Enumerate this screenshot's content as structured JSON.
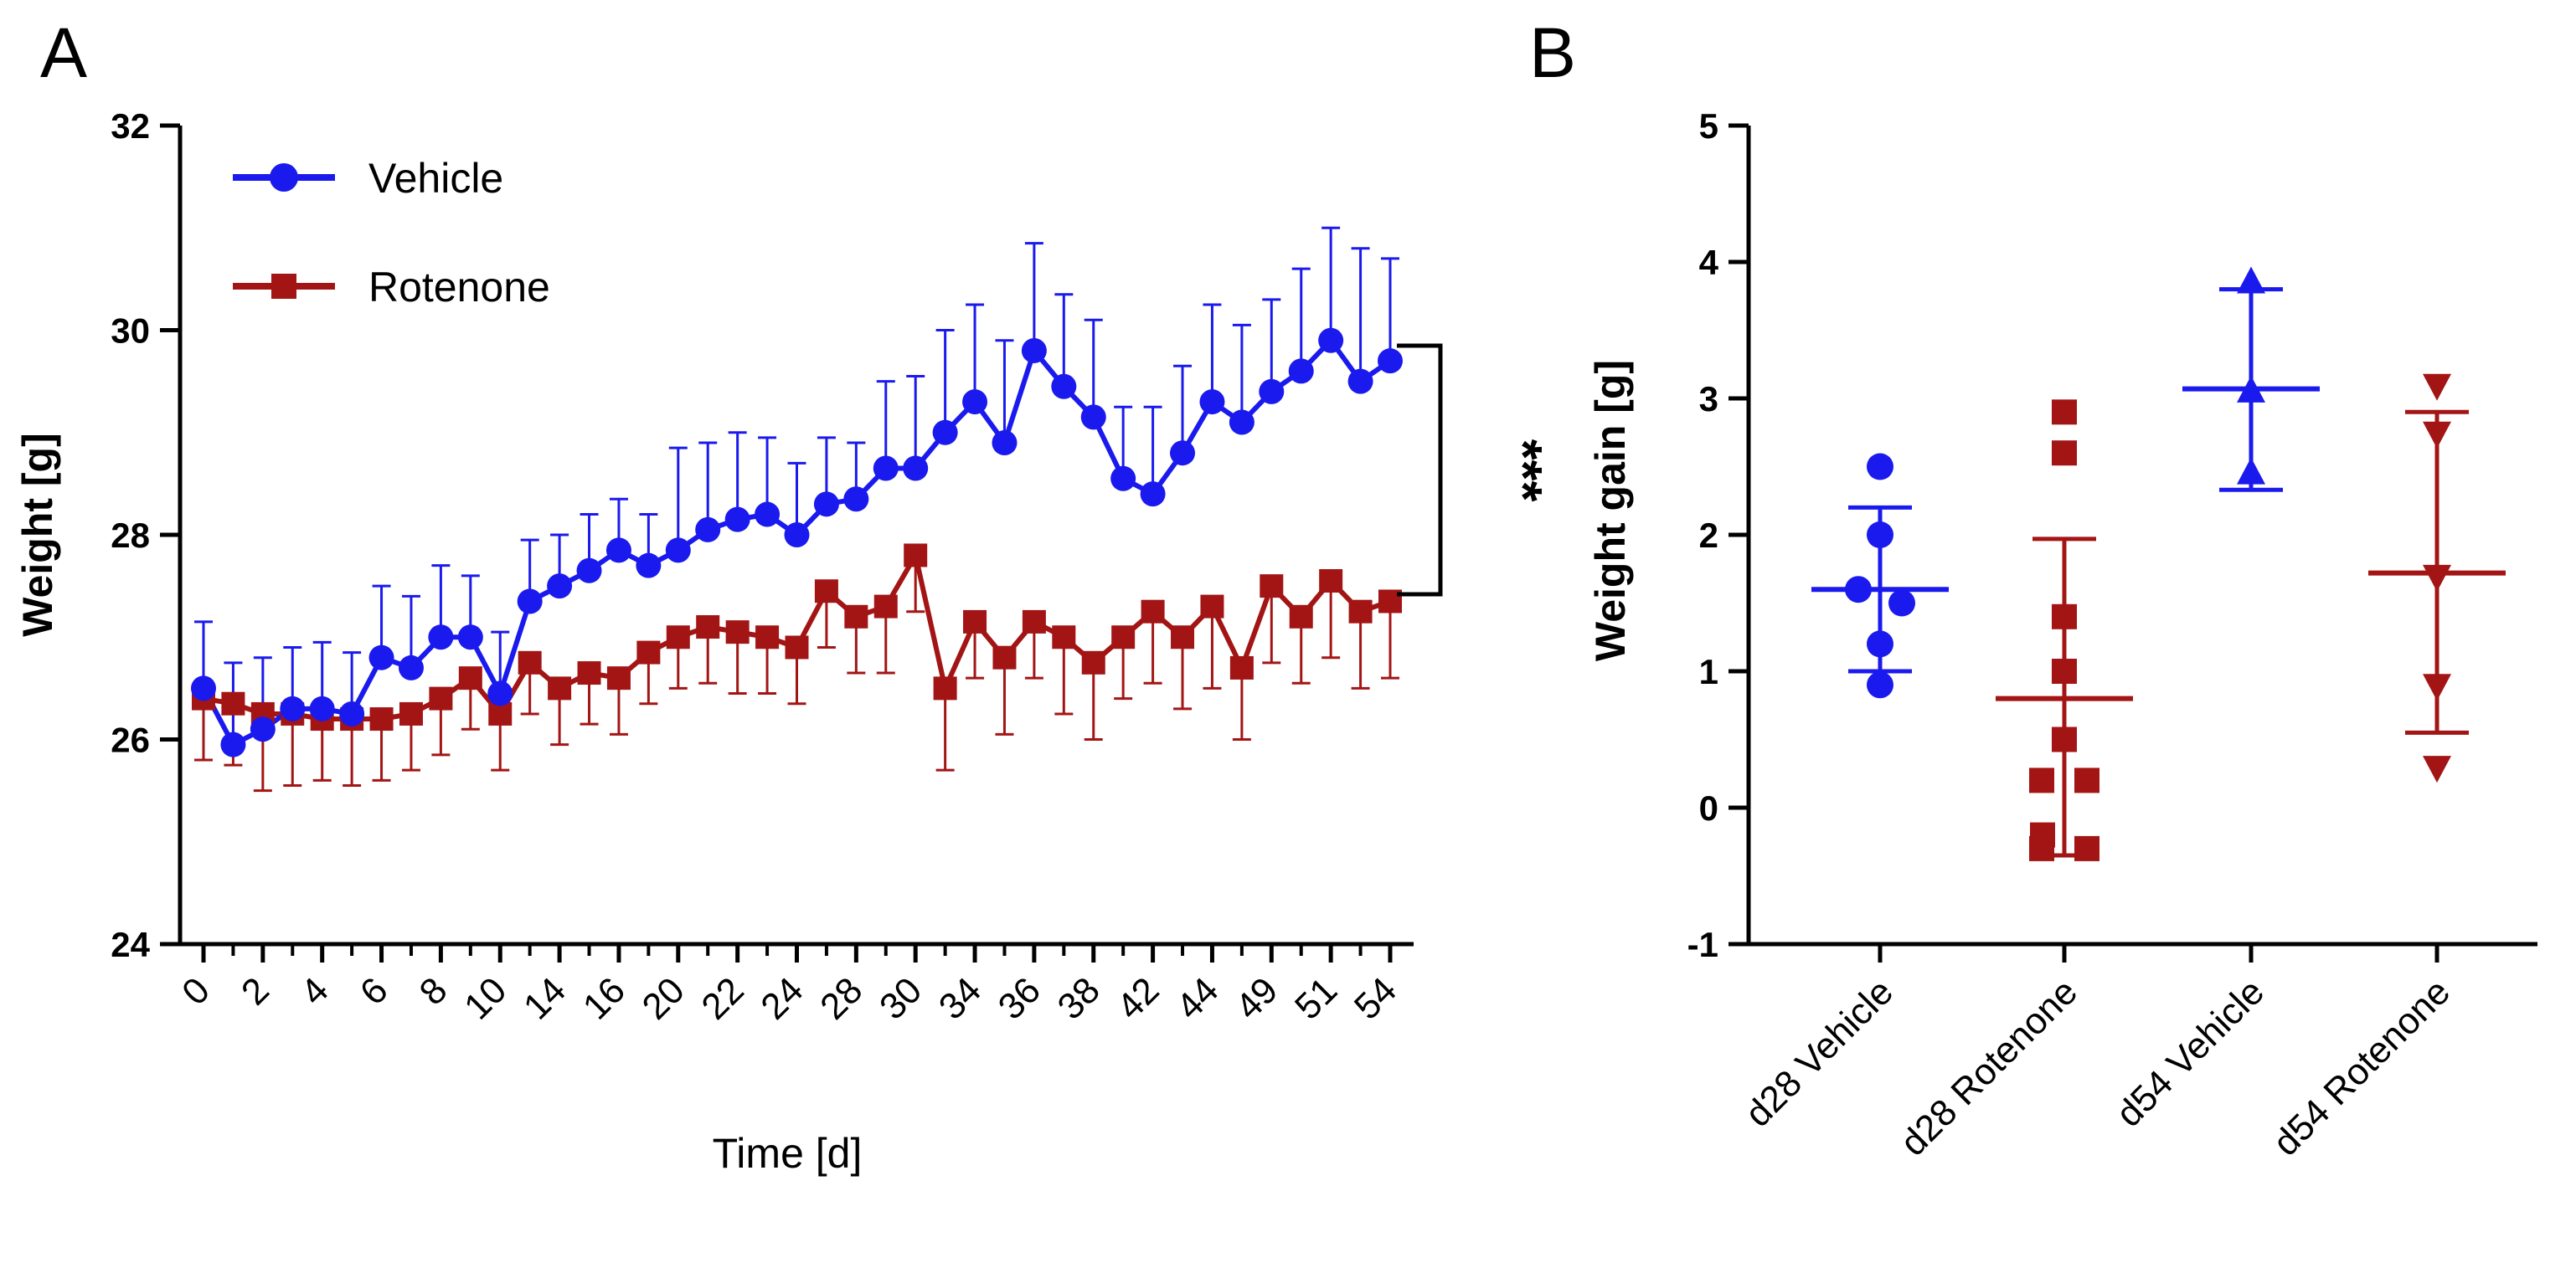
{
  "chart_data": [
    {
      "panel": "A",
      "type": "line",
      "xlabel": "Time [d]",
      "ylabel": "Weight [g]",
      "ylim": [
        24,
        32
      ],
      "yticks": [
        24,
        26,
        28,
        30,
        32
      ],
      "xtick_labels": [
        "0",
        "2",
        "4",
        "6",
        "8",
        "10",
        "14",
        "16",
        "20",
        "22",
        "24",
        "28",
        "30",
        "34",
        "36",
        "38",
        "42",
        "44",
        "49",
        "51",
        "54"
      ],
      "significance": "***",
      "legend_position": "top-left",
      "series": [
        {
          "name": "Vehicle",
          "color": "#1a1aee",
          "marker": "circle",
          "error_direction": "up",
          "values": [
            26.5,
            25.95,
            26.1,
            26.3,
            26.3,
            26.25,
            26.8,
            26.7,
            27.0,
            27.0,
            26.45,
            27.35,
            27.5,
            27.65,
            27.85,
            27.7,
            27.85,
            28.05,
            28.15,
            28.2,
            28.0,
            28.3,
            28.35,
            28.65,
            28.65,
            29.0,
            29.3,
            28.9,
            29.8,
            29.45,
            29.15,
            28.55,
            28.4,
            28.8,
            29.3,
            29.1,
            29.4,
            29.6,
            29.9,
            29.5,
            29.7
          ],
          "errors": [
            0.65,
            0.8,
            0.7,
            0.6,
            0.65,
            0.6,
            0.7,
            0.7,
            0.7,
            0.6,
            0.6,
            0.6,
            0.5,
            0.55,
            0.5,
            0.5,
            1.0,
            0.85,
            0.85,
            0.75,
            0.7,
            0.65,
            0.55,
            0.85,
            0.9,
            1.0,
            0.95,
            1.0,
            1.05,
            0.9,
            0.95,
            0.7,
            0.85,
            0.85,
            0.95,
            0.95,
            0.9,
            1.0,
            1.1,
            1.3,
            1.0
          ]
        },
        {
          "name": "Rotenone",
          "color": "#a31515",
          "marker": "square",
          "error_direction": "down",
          "values": [
            26.4,
            26.35,
            26.25,
            26.25,
            26.2,
            26.2,
            26.2,
            26.25,
            26.4,
            26.6,
            26.25,
            26.75,
            26.5,
            26.65,
            26.6,
            26.85,
            27.0,
            27.1,
            27.05,
            27.0,
            26.9,
            27.45,
            27.2,
            27.3,
            27.8,
            26.5,
            27.15,
            26.8,
            27.15,
            27.0,
            26.75,
            27.0,
            27.25,
            27.0,
            27.3,
            26.7,
            27.5,
            27.2,
            27.55,
            27.25,
            27.35
          ],
          "errors": [
            0.6,
            0.6,
            0.75,
            0.7,
            0.6,
            0.65,
            0.6,
            0.55,
            0.55,
            0.5,
            0.55,
            0.5,
            0.55,
            0.5,
            0.55,
            0.5,
            0.5,
            0.55,
            0.6,
            0.55,
            0.55,
            0.55,
            0.55,
            0.65,
            0.55,
            0.8,
            0.55,
            0.75,
            0.55,
            0.75,
            0.75,
            0.6,
            0.7,
            0.7,
            0.8,
            0.7,
            0.75,
            0.65,
            0.75,
            0.75,
            0.75
          ]
        }
      ]
    },
    {
      "panel": "B",
      "type": "scatter",
      "ylabel": "Weight gain [g]",
      "ylim": [
        -1,
        5
      ],
      "yticks": [
        -1,
        0,
        1,
        2,
        3,
        4,
        5
      ],
      "categories": [
        "d28 Vehicle",
        "d28 Rotenone",
        "d54 Vehicle",
        "d54 Rotenone"
      ],
      "groups": [
        {
          "name": "d28 Vehicle",
          "color": "#1a1aee",
          "marker": "circle",
          "points": [
            2.5,
            2.0,
            1.6,
            1.5,
            1.2,
            0.9
          ],
          "mean": 1.6,
          "sd_low": 1.0,
          "sd_high": 2.2
        },
        {
          "name": "d28 Rotenone",
          "color": "#a31515",
          "marker": "square",
          "points": [
            2.9,
            2.6,
            1.4,
            1.0,
            0.5,
            0.2,
            0.2,
            -0.2,
            -0.3,
            -0.3
          ],
          "mean": 0.8,
          "sd_low": -0.35,
          "sd_high": 1.97
        },
        {
          "name": "d54 Vehicle",
          "color": "#1a1aee",
          "marker": "triangle-up",
          "points": [
            3.85,
            3.05,
            2.45
          ],
          "mean": 3.07,
          "sd_low": 2.33,
          "sd_high": 3.8
        },
        {
          "name": "d54 Rotenone",
          "color": "#a31515",
          "marker": "triangle-down",
          "points": [
            3.1,
            2.75,
            1.7,
            0.9,
            0.3
          ],
          "mean": 1.72,
          "sd_low": 0.55,
          "sd_high": 2.9
        }
      ]
    }
  ],
  "panel_letters": {
    "a": "A",
    "b": "B"
  }
}
